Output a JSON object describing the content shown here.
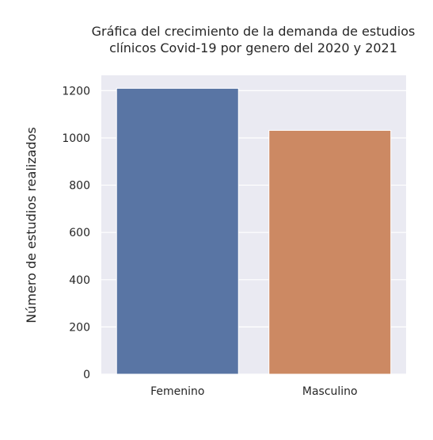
{
  "chart_data": {
    "type": "bar",
    "title_lines": [
      "Gráfica del crecimiento de la demanda de estudios",
      "clínicos Covid-19 por genero del 2020 y 2021"
    ],
    "xlabel": "",
    "ylabel": "Número de estudios realizados",
    "categories": [
      "Femenino",
      "Masculino"
    ],
    "values": [
      1210,
      1032
    ],
    "colors": [
      "#5975a4",
      "#cc8963"
    ],
    "ylim": [
      0,
      1265
    ],
    "yticks": [
      0,
      200,
      400,
      600,
      800,
      1000,
      1200
    ],
    "grid": true,
    "background": "#eaeaf2",
    "legend": "none"
  }
}
